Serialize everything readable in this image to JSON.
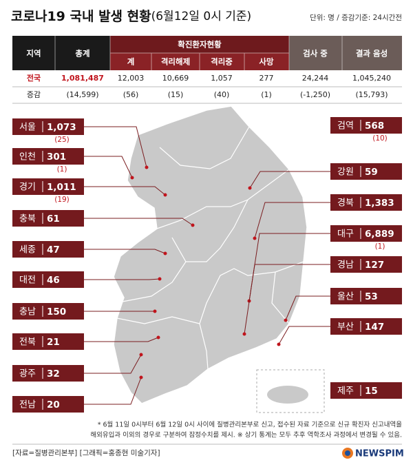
{
  "header": {
    "title": "코로나19 국내 발생 현황",
    "subtitle": "(6월12일 0시 기준)",
    "unit": "단위: 명 / 증감기준: 24시간전"
  },
  "table": {
    "head": {
      "region": "지역",
      "total": "총계",
      "confirmed": "확진환자현황",
      "testing": "검사 중",
      "negative": "결과 음성",
      "sub": [
        "계",
        "격리해제",
        "격리중",
        "사망"
      ]
    },
    "rows": [
      [
        "전국",
        "1,081,487",
        "12,003",
        "10,669",
        "1,057",
        "277",
        "24,244",
        "1,045,240"
      ],
      [
        "증감",
        "(14,599)",
        "(56)",
        "(15)",
        "(40)",
        "(1)",
        "(-1,250)",
        "(15,793)"
      ]
    ]
  },
  "regions": [
    {
      "name": "서울",
      "value": "1,073",
      "change": "(25)"
    },
    {
      "name": "인천",
      "value": "301",
      "change": "(1)"
    },
    {
      "name": "경기",
      "value": "1,011",
      "change": "(19)"
    },
    {
      "name": "충북",
      "value": "61"
    },
    {
      "name": "세종",
      "value": "47"
    },
    {
      "name": "대전",
      "value": "46"
    },
    {
      "name": "충남",
      "value": "150"
    },
    {
      "name": "전북",
      "value": "21"
    },
    {
      "name": "광주",
      "value": "32"
    },
    {
      "name": "전남",
      "value": "20"
    },
    {
      "name": "검역",
      "value": "568",
      "change": "(10)"
    },
    {
      "name": "강원",
      "value": "59"
    },
    {
      "name": "경북",
      "value": "1,383"
    },
    {
      "name": "대구",
      "value": "6,889",
      "change": "(1)"
    },
    {
      "name": "경남",
      "value": "127"
    },
    {
      "name": "울산",
      "value": "53"
    },
    {
      "name": "부산",
      "value": "147"
    },
    {
      "name": "제주",
      "value": "15"
    }
  ],
  "footnote": [
    "* 6월 11일 0시부터 6월 12일 0시 사이에 질병관리본부로 신고, 접수된 자료 기준으로 신규 확진자 신고내역을",
    "해외유입과 이외의 경우로 구분하여 잠정수치를 제시.  ※ 상기 통계는 모두 추후 역학조사 과정에서 변경될 수 있음."
  ],
  "credits": "[자료=질병관리본부]  [그래픽=홍종현 미술기자]",
  "logo": "NEWSPIM"
}
